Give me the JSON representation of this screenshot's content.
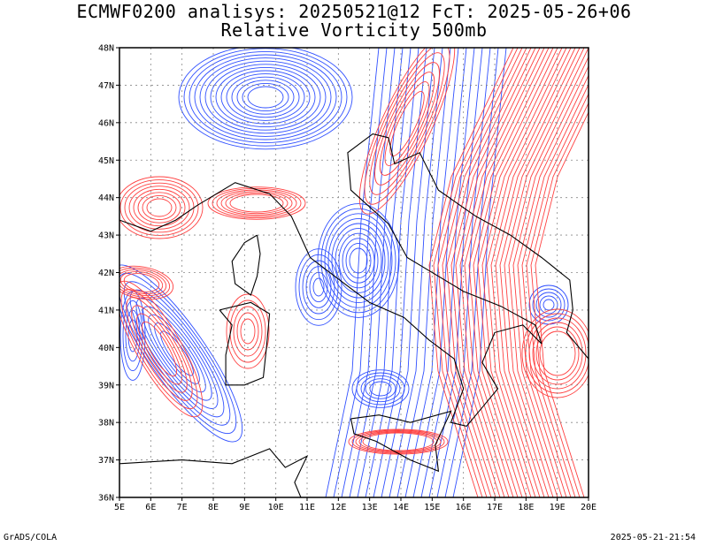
{
  "header": {
    "line1": "ECMWF0200 analisys: 20250521@12 FcT: 2025-05-26+06",
    "line2": "Relative Vorticity 500mb"
  },
  "footer": {
    "left": "GrADS/COLA",
    "right": "2025-05-21-21:54"
  },
  "map": {
    "lat_labels": [
      "48N",
      "47N",
      "46N",
      "45N",
      "44N",
      "43N",
      "42N",
      "41N",
      "40N",
      "39N",
      "38N",
      "37N",
      "36N"
    ],
    "lon_labels": [
      "5E",
      "6E",
      "7E",
      "8E",
      "9E",
      "10E",
      "11E",
      "12E",
      "13E",
      "14E",
      "15E",
      "16E",
      "17E",
      "18E",
      "19E",
      "20E"
    ],
    "colors": {
      "positive": "#ff4040",
      "negative": "#3050ff",
      "coast": "#000000",
      "grid": "#888888"
    }
  }
}
